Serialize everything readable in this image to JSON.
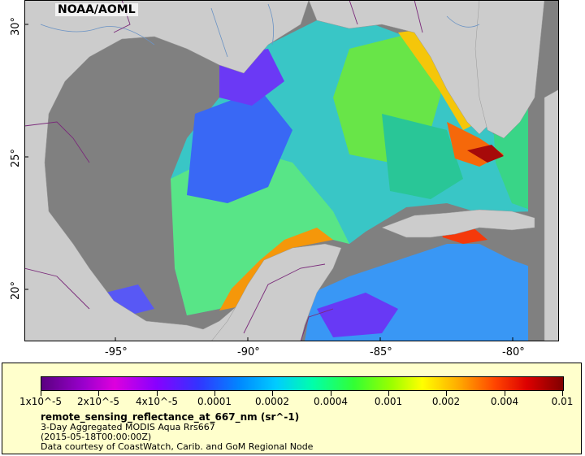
{
  "map": {
    "credit_tag": "NOAA/AOML",
    "lat_labels": [
      "30°",
      "25°",
      "20°"
    ],
    "lon_labels": [
      "-95°",
      "-90°",
      "-85°",
      "-80°"
    ],
    "colors": {
      "land": "#cccccc",
      "ocean_missing": "#808080",
      "borders": "#7a2a7a",
      "rivers": "#6b93c4"
    }
  },
  "legend": {
    "ticks": [
      "1x10^-5",
      "2x10^-5",
      "4x10^-5",
      "0.0001",
      "0.0002",
      "0.0004",
      "0.001",
      "0.002",
      "0.004",
      "0.01"
    ],
    "variable": "remote_sensing_reflectance_at_667_nm (sr^-1)",
    "title": "3-Day Aggregated MODIS Aqua Rrs667",
    "time": "(2015-05-18T00:00:00Z)",
    "credit": "Data courtesy of CoastWatch, Carib. and GoM Regional Node"
  }
}
